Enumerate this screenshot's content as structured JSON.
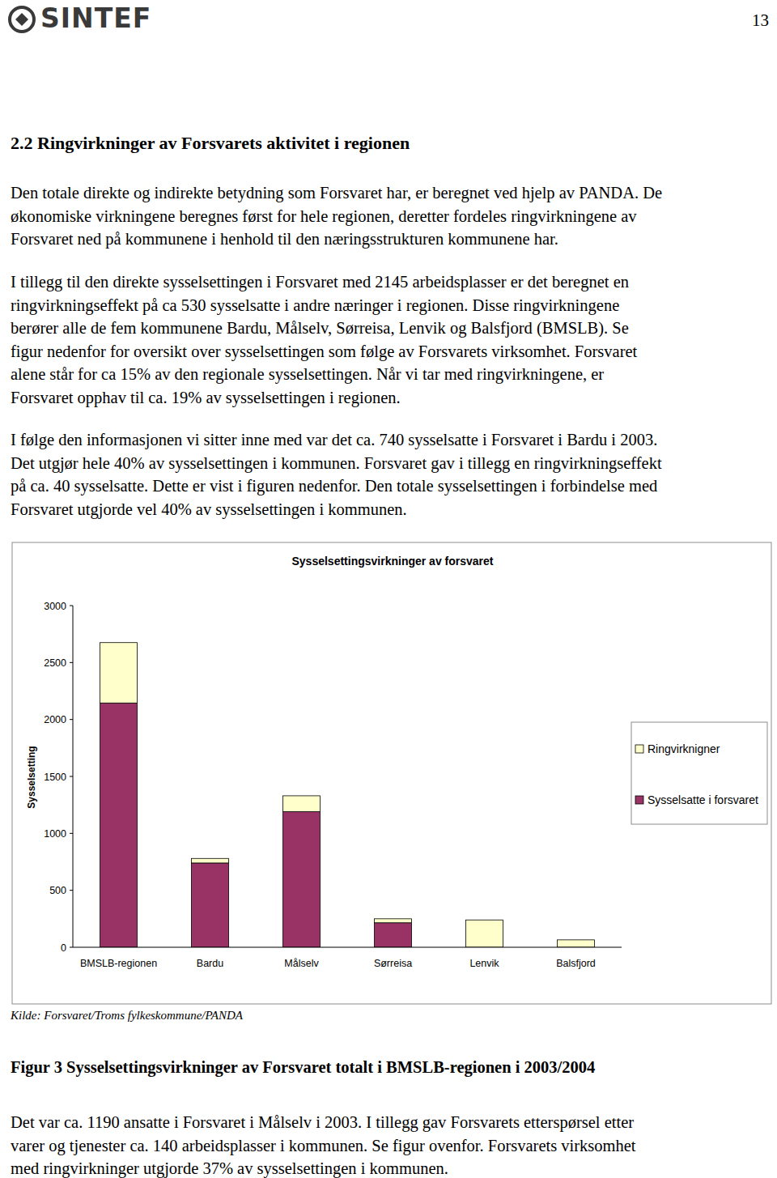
{
  "header": {
    "logo": "SINTEF",
    "page_number": "13"
  },
  "heading": "2.2 Ringvirkninger av Forsvarets aktivitet i regionen",
  "paragraphs": [
    {
      "lines": [
        "Den totale direkte og indirekte betydning som Forsvaret har, er beregnet ved hjelp av PANDA. De",
        "økonomiske virkningene beregnes først for hele regionen, deretter fordeles ringvirkningene av",
        "Forsvaret ned på kommunene i henhold til den næringsstrukturen kommunene har."
      ]
    },
    {
      "lines": [
        "I tillegg til den direkte sysselsettingen i Forsvaret med 2145 arbeidsplasser er det beregnet en",
        "ringvirkningseffekt på ca 530 sysselsatte i andre næringer i regionen. Disse ringvirkningene",
        "berører alle de fem kommunene Bardu, Målselv, Sørreisa, Lenvik og Balsfjord (BMSLB). Se",
        "figur nedenfor for oversikt over sysselsettingen som følge av Forsvarets virksomhet. Forsvaret",
        "alene står for ca 15% av den regionale sysselsettingen. Når vi tar med ringvirkningene, er",
        "Forsvaret opphav til ca. 19%  av sysselsettingen i regionen."
      ]
    },
    {
      "lines": [
        "I følge den informasjonen vi sitter inne med var det ca. 740 sysselsatte i Forsvaret i Bardu i 2003.",
        "Det utgjør hele 40% av sysselsettingen i kommunen. Forsvaret gav i tillegg en ringvirkningseffekt",
        "på ca. 40 sysselsatte. Dette er vist i figuren nedenfor. Den totale sysselsettingen i forbindelse med",
        "Forsvaret utgjorde vel 40% av sysselsettingen i kommunen."
      ]
    }
  ],
  "chart_data": {
    "type": "bar",
    "stacked": true,
    "title": "Sysselsettingsvirkninger av forsvaret",
    "y_label": "Sysselsetting",
    "categories": [
      "BMSLB-regionen",
      "Bardu",
      "Målselv",
      "Sørreisa",
      "Lenvik",
      "Balsfjord"
    ],
    "series": [
      {
        "name": "Sysselsatte i forsvaret",
        "color": "#993366",
        "values": [
          2145,
          740,
          1190,
          215,
          0,
          0
        ]
      },
      {
        "name": "Ringvirknigner",
        "color": "#ffffcc",
        "values": [
          530,
          40,
          140,
          35,
          240,
          65
        ]
      }
    ],
    "ylim": [
      0,
      3000
    ],
    "yticks": [
      0,
      500,
      1000,
      1500,
      2000,
      2500,
      3000
    ],
    "grid": false,
    "legend": "right"
  },
  "source": "Kilde: Forsvaret/Troms fylkeskommune/PANDA",
  "caption": "Figur 3  Sysselsettingsvirkninger av Forsvaret totalt i BMSLB-regionen i 2003/2004",
  "after_paragraphs": [
    {
      "lines": [
        "Det var ca. 1190 ansatte i Forsvaret i Målselv i 2003. I tillegg gav Forsvarets etterspørsel etter",
        "varer og tjenester ca. 140 arbeidsplasser i kommunen. Se figur ovenfor. Forsvarets virksomhet",
        "med ringvirkninger utgjorde 37% av sysselsettingen i kommunen."
      ]
    }
  ]
}
